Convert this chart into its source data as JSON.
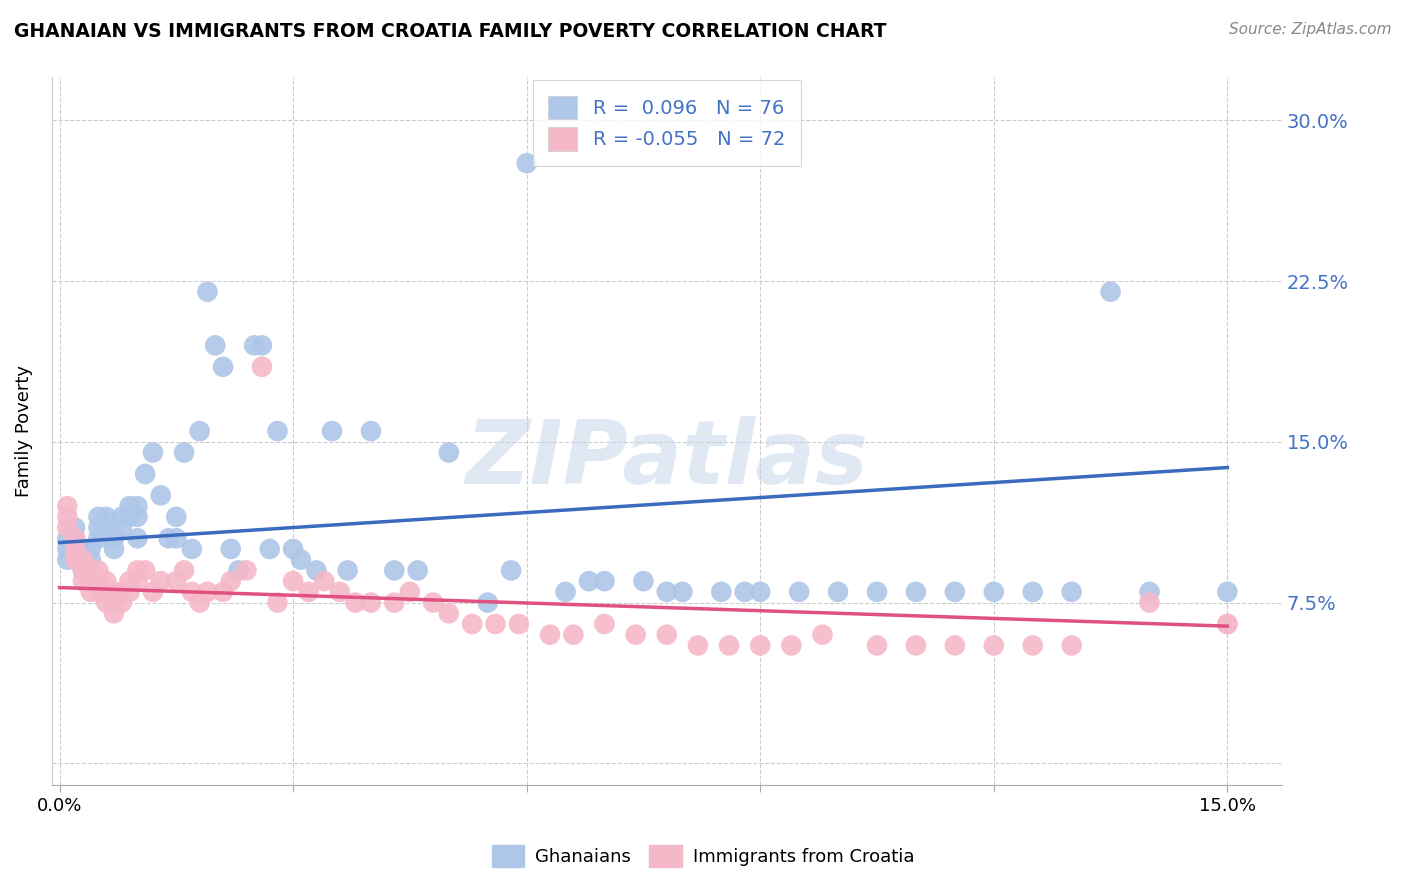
{
  "title": "GHANAIAN VS IMMIGRANTS FROM CROATIA FAMILY POVERTY CORRELATION CHART",
  "source": "Source: ZipAtlas.com",
  "ylabel": "Family Poverty",
  "y_ticks": [
    0.0,
    0.075,
    0.15,
    0.225,
    0.3
  ],
  "y_tick_labels": [
    "",
    "7.5%",
    "15.0%",
    "22.5%",
    "30.0%"
  ],
  "x_ticks": [
    0.0,
    0.03,
    0.06,
    0.09,
    0.12,
    0.15
  ],
  "x_tick_labels": [
    "0.0%",
    "",
    "",
    "",
    "",
    "15.0%"
  ],
  "xlim": [
    -0.001,
    0.157
  ],
  "ylim": [
    -0.01,
    0.32
  ],
  "ghanaian_color": "#aec6e8",
  "croatia_color": "#f5b8c8",
  "ghanaian_line_color": "#3a6bbf",
  "croatia_line_color": "#e05080",
  "legend_r_ghanaian": "R =  0.096",
  "legend_n_ghanaian": "N = 76",
  "legend_r_croatia": "R = -0.055",
  "legend_n_croatia": "N = 72",
  "watermark": "ZIPatlas",
  "ghanaian_line_x": [
    0.0,
    0.15
  ],
  "ghanaian_line_y_start": 0.103,
  "ghanaian_line_y_end": 0.138,
  "croatia_line_x": [
    0.0,
    0.15
  ],
  "croatia_line_y_start": 0.082,
  "croatia_line_y_end": 0.064,
  "ghanaian_scatter_x": [
    0.001,
    0.001,
    0.001,
    0.002,
    0.002,
    0.002,
    0.002,
    0.003,
    0.003,
    0.003,
    0.004,
    0.004,
    0.005,
    0.005,
    0.005,
    0.006,
    0.006,
    0.007,
    0.007,
    0.008,
    0.008,
    0.009,
    0.009,
    0.01,
    0.01,
    0.01,
    0.011,
    0.012,
    0.013,
    0.014,
    0.015,
    0.015,
    0.016,
    0.017,
    0.018,
    0.019,
    0.02,
    0.021,
    0.022,
    0.023,
    0.025,
    0.026,
    0.027,
    0.028,
    0.03,
    0.031,
    0.033,
    0.035,
    0.037,
    0.04,
    0.043,
    0.046,
    0.05,
    0.055,
    0.058,
    0.06,
    0.065,
    0.068,
    0.07,
    0.075,
    0.078,
    0.08,
    0.085,
    0.088,
    0.09,
    0.095,
    0.1,
    0.105,
    0.11,
    0.115,
    0.12,
    0.125,
    0.13,
    0.135,
    0.14,
    0.15
  ],
  "ghanaian_scatter_y": [
    0.105,
    0.1,
    0.095,
    0.11,
    0.105,
    0.1,
    0.095,
    0.1,
    0.095,
    0.09,
    0.1,
    0.095,
    0.115,
    0.11,
    0.105,
    0.115,
    0.11,
    0.105,
    0.1,
    0.115,
    0.11,
    0.12,
    0.115,
    0.105,
    0.115,
    0.12,
    0.135,
    0.145,
    0.125,
    0.105,
    0.115,
    0.105,
    0.145,
    0.1,
    0.155,
    0.22,
    0.195,
    0.185,
    0.1,
    0.09,
    0.195,
    0.195,
    0.1,
    0.155,
    0.1,
    0.095,
    0.09,
    0.155,
    0.09,
    0.155,
    0.09,
    0.09,
    0.145,
    0.075,
    0.09,
    0.28,
    0.08,
    0.085,
    0.085,
    0.085,
    0.08,
    0.08,
    0.08,
    0.08,
    0.08,
    0.08,
    0.08,
    0.08,
    0.08,
    0.08,
    0.08,
    0.08,
    0.08,
    0.22,
    0.08,
    0.08
  ],
  "croatia_scatter_x": [
    0.001,
    0.001,
    0.001,
    0.002,
    0.002,
    0.002,
    0.003,
    0.003,
    0.003,
    0.004,
    0.004,
    0.004,
    0.005,
    0.005,
    0.005,
    0.006,
    0.006,
    0.006,
    0.007,
    0.007,
    0.007,
    0.008,
    0.008,
    0.009,
    0.009,
    0.01,
    0.01,
    0.011,
    0.012,
    0.013,
    0.015,
    0.016,
    0.017,
    0.018,
    0.019,
    0.021,
    0.022,
    0.024,
    0.026,
    0.028,
    0.03,
    0.032,
    0.034,
    0.036,
    0.038,
    0.04,
    0.043,
    0.045,
    0.048,
    0.05,
    0.053,
    0.056,
    0.059,
    0.063,
    0.066,
    0.07,
    0.074,
    0.078,
    0.082,
    0.086,
    0.09,
    0.094,
    0.098,
    0.105,
    0.11,
    0.115,
    0.12,
    0.125,
    0.13,
    0.14,
    0.15,
    0.15
  ],
  "croatia_scatter_y": [
    0.12,
    0.115,
    0.11,
    0.105,
    0.1,
    0.095,
    0.095,
    0.09,
    0.085,
    0.09,
    0.085,
    0.08,
    0.09,
    0.085,
    0.08,
    0.085,
    0.08,
    0.075,
    0.08,
    0.075,
    0.07,
    0.08,
    0.075,
    0.085,
    0.08,
    0.09,
    0.085,
    0.09,
    0.08,
    0.085,
    0.085,
    0.09,
    0.08,
    0.075,
    0.08,
    0.08,
    0.085,
    0.09,
    0.185,
    0.075,
    0.085,
    0.08,
    0.085,
    0.08,
    0.075,
    0.075,
    0.075,
    0.08,
    0.075,
    0.07,
    0.065,
    0.065,
    0.065,
    0.06,
    0.06,
    0.065,
    0.06,
    0.06,
    0.055,
    0.055,
    0.055,
    0.055,
    0.06,
    0.055,
    0.055,
    0.055,
    0.055,
    0.055,
    0.055,
    0.075,
    0.065,
    0.065
  ]
}
